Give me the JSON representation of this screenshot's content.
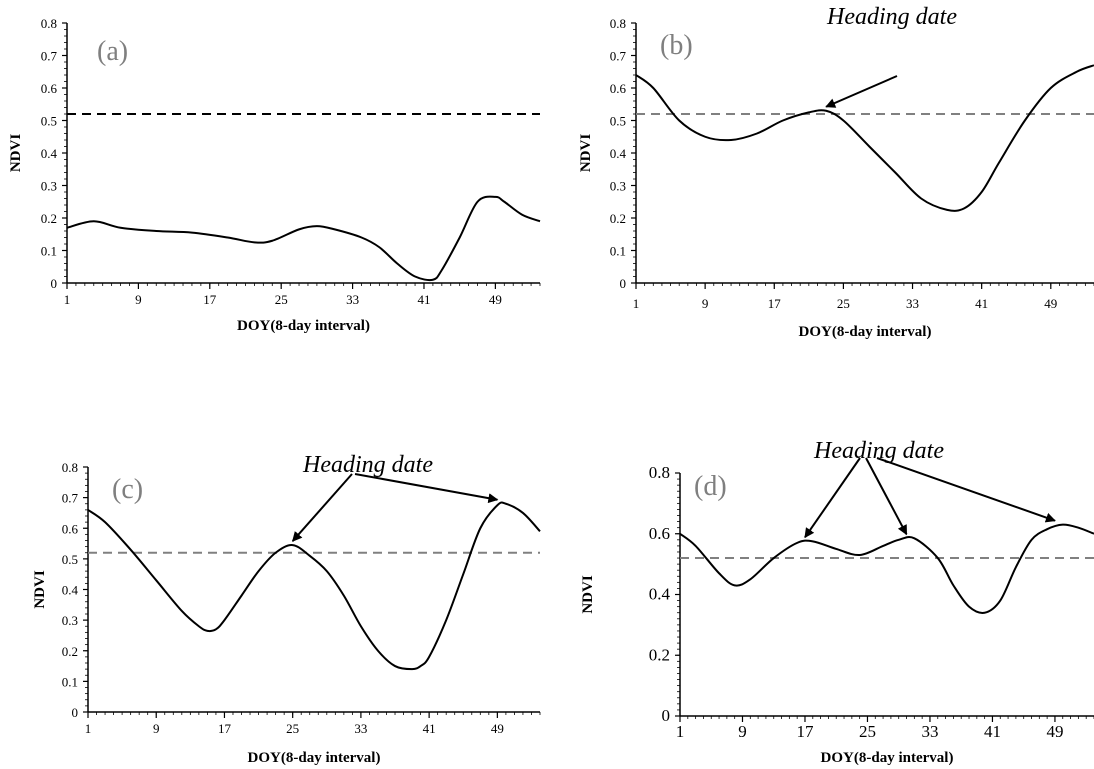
{
  "chart_data": [
    {
      "type": "line",
      "panel_label": "(a)",
      "xlabel": "DOY(8-day interval)",
      "ylabel": "NDVI",
      "xlim": [
        1,
        54
      ],
      "ylim": [
        0,
        0.8
      ],
      "xticks": [
        "1",
        "9",
        "17",
        "25",
        "33",
        "41",
        "49"
      ],
      "yticks": [
        "0",
        "0.1",
        "0.2",
        "0.3",
        "0.4",
        "0.5",
        "0.6",
        "0.7",
        "0.8"
      ],
      "threshold": {
        "value": 0.52,
        "style": "dashed",
        "color": "#000000"
      },
      "series": [
        {
          "x": [
            1,
            4,
            7,
            11,
            15,
            19,
            22,
            24,
            27,
            29,
            31,
            34,
            36,
            38,
            40,
            42,
            43,
            45,
            47,
            49,
            50,
            52,
            54
          ],
          "values": [
            0.17,
            0.19,
            0.17,
            0.16,
            0.155,
            0.14,
            0.125,
            0.13,
            0.165,
            0.175,
            0.165,
            0.14,
            0.11,
            0.06,
            0.02,
            0.01,
            0.04,
            0.14,
            0.25,
            0.265,
            0.25,
            0.21,
            0.19
          ]
        }
      ],
      "annotation": null
    },
    {
      "type": "line",
      "panel_label": "(b)",
      "xlabel": "DOY(8-day  interval)",
      "ylabel": "NDVI",
      "xlim": [
        1,
        54
      ],
      "ylim": [
        0,
        0.8
      ],
      "xticks": [
        "1",
        "9",
        "17",
        "25",
        "33",
        "41",
        "49"
      ],
      "yticks": [
        "0",
        "0.1",
        "0.2",
        "0.3",
        "0.4",
        "0.5",
        "0.6",
        "0.7",
        "0.8"
      ],
      "threshold": {
        "value": 0.52,
        "style": "dashed",
        "color": "#808080"
      },
      "series": [
        {
          "x": [
            1,
            3,
            6,
            9,
            12,
            15,
            18,
            21,
            23,
            25,
            28,
            31,
            34,
            37,
            39,
            41,
            43,
            46,
            49,
            52,
            54
          ],
          "values": [
            0.64,
            0.6,
            0.5,
            0.45,
            0.44,
            0.46,
            0.5,
            0.525,
            0.53,
            0.5,
            0.42,
            0.34,
            0.26,
            0.225,
            0.23,
            0.28,
            0.37,
            0.5,
            0.6,
            0.65,
            0.67
          ]
        }
      ],
      "annotation": {
        "text": "Heading date",
        "targets": [
          [
            23,
            0.53
          ]
        ]
      }
    },
    {
      "type": "line",
      "panel_label": "(c)",
      "xlabel": "DOY(8-day interval)",
      "ylabel": "NDVI",
      "xlim": [
        1,
        54
      ],
      "ylim": [
        0,
        0.8
      ],
      "xticks": [
        "1",
        "9",
        "17",
        "25",
        "33",
        "41",
        "49"
      ],
      "yticks": [
        "0",
        "0.1",
        "0.2",
        "0.3",
        "0.4",
        "0.5",
        "0.6",
        "0.7",
        "0.8"
      ],
      "threshold": {
        "value": 0.52,
        "style": "dashed",
        "color": "#808080"
      },
      "series": [
        {
          "x": [
            1,
            3,
            6,
            9,
            12,
            14,
            15,
            16,
            17,
            19,
            21,
            23,
            25,
            27,
            29,
            31,
            33,
            35,
            37,
            39,
            40,
            41,
            43,
            45,
            47,
            49,
            50,
            52,
            54
          ],
          "values": [
            0.66,
            0.62,
            0.53,
            0.43,
            0.33,
            0.28,
            0.265,
            0.27,
            0.3,
            0.38,
            0.46,
            0.52,
            0.545,
            0.51,
            0.46,
            0.38,
            0.28,
            0.2,
            0.15,
            0.14,
            0.15,
            0.18,
            0.3,
            0.45,
            0.6,
            0.675,
            0.68,
            0.65,
            0.59
          ]
        }
      ],
      "annotation": {
        "text": "Heading date",
        "targets": [
          [
            25,
            0.545
          ],
          [
            49,
            0.68
          ]
        ]
      }
    },
    {
      "type": "line",
      "panel_label": "(d)",
      "xlabel": "DOY(8-day interval)",
      "ylabel": "NDVI",
      "xlim": [
        1,
        54
      ],
      "ylim": [
        0,
        0.8
      ],
      "xticks": [
        "1",
        "9",
        "17",
        "25",
        "33",
        "41",
        "49"
      ],
      "yticks": [
        "0",
        "0.2",
        "0.4",
        "0.6",
        "0.8"
      ],
      "threshold": {
        "value": 0.52,
        "style": "dashed",
        "color": "#808080"
      },
      "series": [
        {
          "x": [
            1,
            3,
            6,
            8,
            10,
            13,
            16,
            18,
            21,
            24,
            27,
            29,
            31,
            34,
            36,
            38,
            40,
            42,
            44,
            46,
            48,
            50,
            52,
            54
          ],
          "values": [
            0.6,
            0.56,
            0.47,
            0.43,
            0.45,
            0.52,
            0.57,
            0.575,
            0.55,
            0.53,
            0.56,
            0.58,
            0.585,
            0.52,
            0.43,
            0.36,
            0.34,
            0.38,
            0.49,
            0.58,
            0.615,
            0.63,
            0.62,
            0.6
          ]
        }
      ],
      "annotation": {
        "text": "Heading date",
        "targets": [
          [
            17,
            0.575
          ],
          [
            30,
            0.585
          ],
          [
            49,
            0.63
          ]
        ]
      }
    }
  ]
}
